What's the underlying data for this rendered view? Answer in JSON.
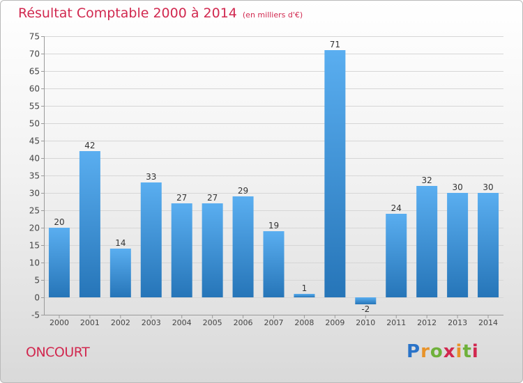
{
  "title": "Résultat Comptable 2000 à 2014",
  "unit": "(en milliers d'€)",
  "town": "ONCOURT",
  "logo": [
    "P",
    "r",
    "o",
    "x",
    "i",
    "t",
    "i"
  ],
  "colors": {
    "title": "#d1284f",
    "bar_top": "#5aaef0",
    "bar_bottom": "#2675b8",
    "axis": "#9a9a9a",
    "grid": "#d6d6d6"
  },
  "chart_data": {
    "type": "bar",
    "title": "Résultat Comptable 2000 à 2014",
    "ylabel": "(en milliers d'€)",
    "xlabel": "",
    "categories": [
      "2000",
      "2001",
      "2002",
      "2003",
      "2004",
      "2005",
      "2006",
      "2007",
      "2008",
      "2009",
      "2010",
      "2011",
      "2012",
      "2013",
      "2014"
    ],
    "values": [
      20,
      42,
      14,
      33,
      27,
      27,
      29,
      19,
      1,
      71,
      -2,
      24,
      32,
      30,
      30
    ],
    "ylim": [
      -5,
      75
    ],
    "yticks": [
      -5,
      0,
      5,
      10,
      15,
      20,
      25,
      30,
      35,
      40,
      45,
      50,
      55,
      60,
      65,
      70,
      75
    ],
    "grid": true,
    "data_labels": true
  }
}
